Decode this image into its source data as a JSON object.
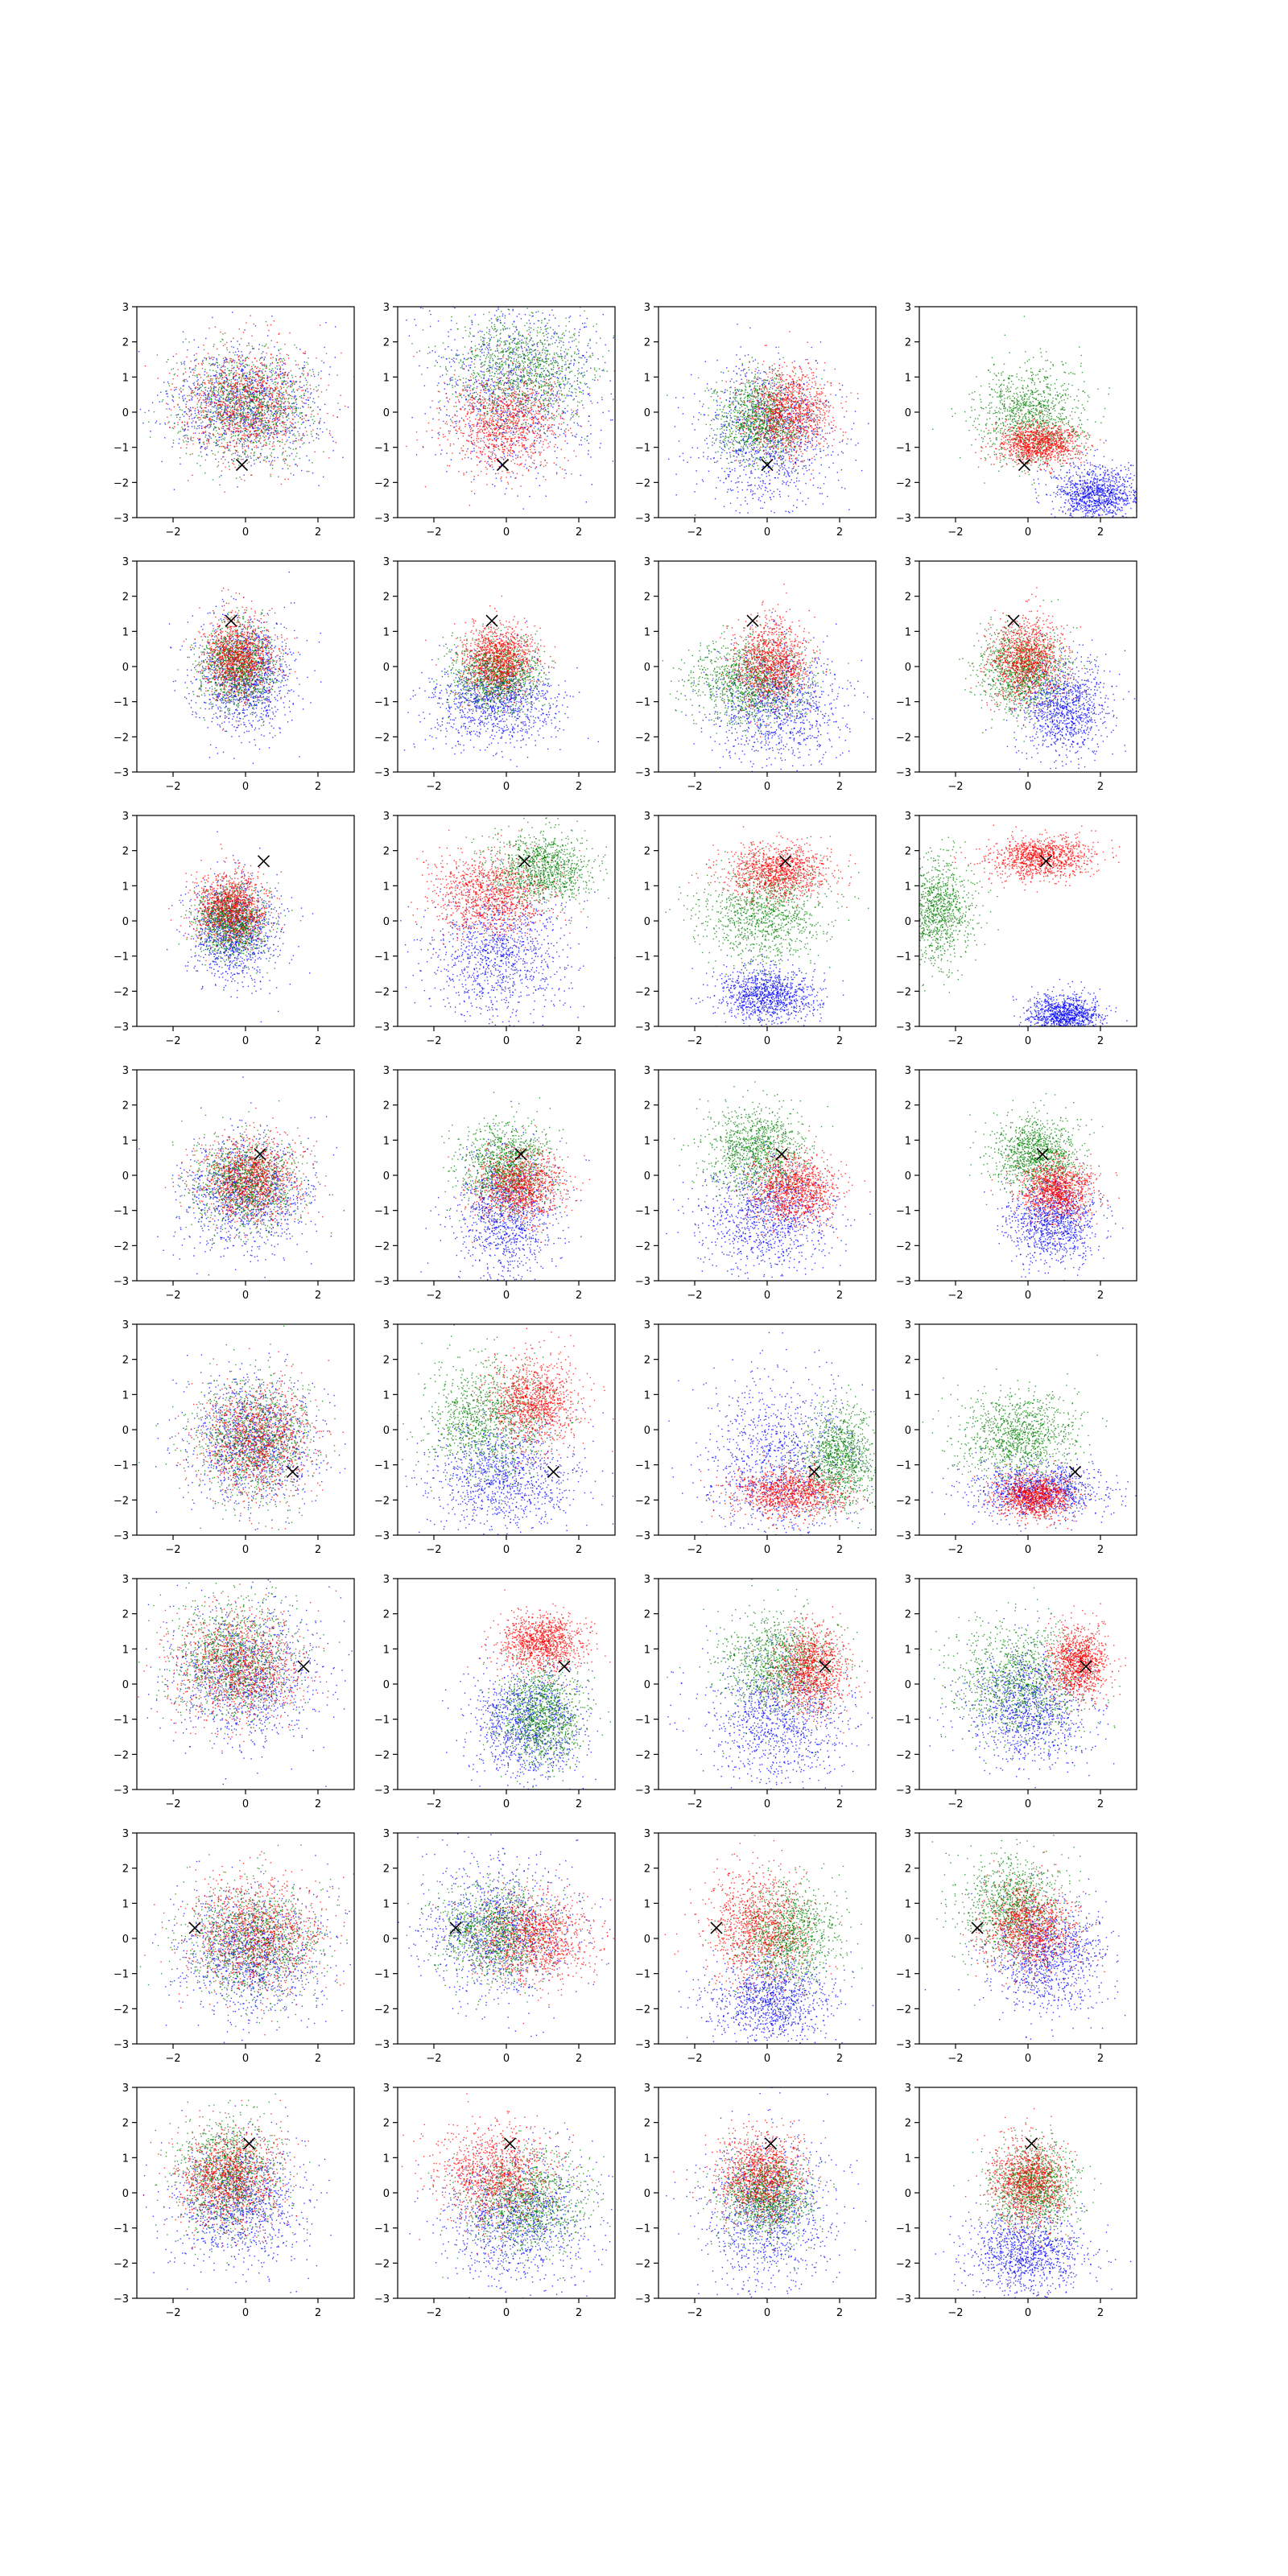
{
  "figure": {
    "background": "#ffffff",
    "rows": 8,
    "cols": 4
  },
  "colors": {
    "blue": "#0000ff",
    "green": "#008000",
    "red": "#ff0000",
    "marker": "#000000",
    "axes": "#000000"
  },
  "chart_data": {
    "type": "scatter",
    "description": "8x4 grid of scatter panels; each panel shows three point clouds (blue, green, red) and a black x marker",
    "xlim": [
      -3,
      3
    ],
    "ylim": [
      -3,
      3
    ],
    "xticks": [
      -2,
      0,
      2
    ],
    "yticks": [
      -3,
      -2,
      -1,
      0,
      1,
      2,
      3
    ],
    "xtick_labels": [
      "−2",
      "0",
      "2"
    ],
    "ytick_labels": [
      "−3",
      "−2",
      "−1",
      "0",
      "1",
      "2",
      "3"
    ],
    "grid": false,
    "legend": "none",
    "points_per_cloud": 1100,
    "panels": [
      {
        "row": 0,
        "col": 0,
        "marker": [
          -0.1,
          -1.5
        ],
        "clouds": [
          {
            "color": "blue",
            "cx": 0,
            "cy": 0.2,
            "sx": 1.0,
            "sy": 0.8
          },
          {
            "color": "green",
            "cx": 0,
            "cy": 0.2,
            "sx": 0.9,
            "sy": 0.8
          },
          {
            "color": "red",
            "cx": 0,
            "cy": 0.2,
            "sx": 0.9,
            "sy": 0.8
          }
        ]
      },
      {
        "row": 0,
        "col": 1,
        "marker": [
          -0.1,
          -1.5
        ],
        "clouds": [
          {
            "color": "blue",
            "cx": 0.3,
            "cy": 0.8,
            "sx": 1.2,
            "sy": 1.3
          },
          {
            "color": "green",
            "cx": 0.4,
            "cy": 1.2,
            "sx": 1.0,
            "sy": 0.8
          },
          {
            "color": "red",
            "cx": -0.1,
            "cy": -0.3,
            "sx": 0.8,
            "sy": 0.7
          }
        ]
      },
      {
        "row": 0,
        "col": 2,
        "marker": [
          0,
          -1.5
        ],
        "clouds": [
          {
            "color": "blue",
            "cx": 0,
            "cy": -0.7,
            "sx": 0.9,
            "sy": 1.0
          },
          {
            "color": "green",
            "cx": -0.2,
            "cy": -0.2,
            "sx": 0.6,
            "sy": 0.6
          },
          {
            "color": "red",
            "cx": 0.6,
            "cy": 0,
            "sx": 0.6,
            "sy": 0.6
          }
        ]
      },
      {
        "row": 0,
        "col": 3,
        "marker": [
          -0.1,
          -1.5
        ],
        "clouds": [
          {
            "color": "blue",
            "cx": 1.9,
            "cy": -2.3,
            "sx": 0.6,
            "sy": 0.4
          },
          {
            "color": "green",
            "cx": 0.1,
            "cy": -0.1,
            "sx": 0.7,
            "sy": 0.7
          },
          {
            "color": "red",
            "cx": 0.3,
            "cy": -0.9,
            "sx": 0.6,
            "sy": 0.3
          }
        ]
      },
      {
        "row": 1,
        "col": 0,
        "marker": [
          -0.4,
          1.3
        ],
        "clouds": [
          {
            "color": "blue",
            "cx": 0,
            "cy": -0.3,
            "sx": 0.7,
            "sy": 0.8
          },
          {
            "color": "green",
            "cx": -0.2,
            "cy": 0,
            "sx": 0.5,
            "sy": 0.6
          },
          {
            "color": "red",
            "cx": -0.2,
            "cy": 0.3,
            "sx": 0.5,
            "sy": 0.6
          }
        ]
      },
      {
        "row": 1,
        "col": 1,
        "marker": [
          -0.4,
          1.3
        ],
        "clouds": [
          {
            "color": "blue",
            "cx": -0.3,
            "cy": -1.0,
            "sx": 0.9,
            "sy": 0.6
          },
          {
            "color": "green",
            "cx": -0.3,
            "cy": -0.2,
            "sx": 0.6,
            "sy": 0.5
          },
          {
            "color": "red",
            "cx": -0.2,
            "cy": 0.2,
            "sx": 0.5,
            "sy": 0.5
          }
        ]
      },
      {
        "row": 1,
        "col": 2,
        "marker": [
          -0.4,
          1.3
        ],
        "clouds": [
          {
            "color": "blue",
            "cx": 0.3,
            "cy": -1.1,
            "sx": 0.9,
            "sy": 0.8
          },
          {
            "color": "green",
            "cx": -0.5,
            "cy": -0.4,
            "sx": 0.8,
            "sy": 0.6
          },
          {
            "color": "red",
            "cx": 0.1,
            "cy": 0.1,
            "sx": 0.5,
            "sy": 0.6
          }
        ]
      },
      {
        "row": 1,
        "col": 3,
        "marker": [
          -0.4,
          1.3
        ],
        "clouds": [
          {
            "color": "blue",
            "cx": 1.0,
            "cy": -1.2,
            "sx": 0.6,
            "sy": 0.7
          },
          {
            "color": "green",
            "cx": -0.2,
            "cy": -0.1,
            "sx": 0.6,
            "sy": 0.6
          },
          {
            "color": "red",
            "cx": 0,
            "cy": 0.2,
            "sx": 0.5,
            "sy": 0.6
          }
        ]
      },
      {
        "row": 2,
        "col": 0,
        "marker": [
          0.5,
          1.7
        ],
        "clouds": [
          {
            "color": "blue",
            "cx": -0.3,
            "cy": -0.3,
            "sx": 0.6,
            "sy": 0.7
          },
          {
            "color": "green",
            "cx": -0.4,
            "cy": 0,
            "sx": 0.5,
            "sy": 0.5
          },
          {
            "color": "red",
            "cx": -0.4,
            "cy": 0.4,
            "sx": 0.5,
            "sy": 0.5
          }
        ]
      },
      {
        "row": 2,
        "col": 1,
        "marker": [
          0.5,
          1.7
        ],
        "clouds": [
          {
            "color": "blue",
            "cx": -0.2,
            "cy": -1.0,
            "sx": 0.9,
            "sy": 0.9
          },
          {
            "color": "green",
            "cx": 1.0,
            "cy": 1.5,
            "sx": 0.7,
            "sy": 0.5
          },
          {
            "color": "red",
            "cx": -0.4,
            "cy": 0.7,
            "sx": 0.8,
            "sy": 0.6
          }
        ]
      },
      {
        "row": 2,
        "col": 2,
        "marker": [
          0.5,
          1.7
        ],
        "clouds": [
          {
            "color": "blue",
            "cx": 0,
            "cy": -2.1,
            "sx": 0.7,
            "sy": 0.4
          },
          {
            "color": "green",
            "cx": -0.1,
            "cy": 0.2,
            "sx": 0.9,
            "sy": 0.7
          },
          {
            "color": "red",
            "cx": 0.3,
            "cy": 1.4,
            "sx": 0.7,
            "sy": 0.4
          }
        ]
      },
      {
        "row": 2,
        "col": 3,
        "marker": [
          0.5,
          1.7
        ],
        "clouds": [
          {
            "color": "blue",
            "cx": 1.0,
            "cy": -2.7,
            "sx": 0.5,
            "sy": 0.3
          },
          {
            "color": "green",
            "cx": -2.5,
            "cy": 0.3,
            "sx": 0.5,
            "sy": 0.8
          },
          {
            "color": "red",
            "cx": 0.4,
            "cy": 1.8,
            "sx": 0.7,
            "sy": 0.3
          }
        ]
      },
      {
        "row": 3,
        "col": 0,
        "marker": [
          0.4,
          0.6
        ],
        "clouds": [
          {
            "color": "blue",
            "cx": 0,
            "cy": -0.5,
            "sx": 0.9,
            "sy": 0.8
          },
          {
            "color": "green",
            "cx": 0,
            "cy": -0.2,
            "sx": 0.7,
            "sy": 0.6
          },
          {
            "color": "red",
            "cx": 0.1,
            "cy": -0.1,
            "sx": 0.7,
            "sy": 0.6
          }
        ]
      },
      {
        "row": 3,
        "col": 1,
        "marker": [
          0.4,
          0.6
        ],
        "clouds": [
          {
            "color": "blue",
            "cx": 0,
            "cy": -1.1,
            "sx": 0.7,
            "sy": 0.9
          },
          {
            "color": "green",
            "cx": 0,
            "cy": 0.3,
            "sx": 0.6,
            "sy": 0.6
          },
          {
            "color": "red",
            "cx": 0.4,
            "cy": -0.3,
            "sx": 0.6,
            "sy": 0.5
          }
        ]
      },
      {
        "row": 3,
        "col": 2,
        "marker": [
          0.4,
          0.6
        ],
        "clouds": [
          {
            "color": "blue",
            "cx": 0,
            "cy": -1.2,
            "sx": 0.9,
            "sy": 0.8
          },
          {
            "color": "green",
            "cx": -0.3,
            "cy": 0.7,
            "sx": 0.7,
            "sy": 0.6
          },
          {
            "color": "red",
            "cx": 0.8,
            "cy": -0.4,
            "sx": 0.6,
            "sy": 0.5
          }
        ]
      },
      {
        "row": 3,
        "col": 3,
        "marker": [
          0.4,
          0.6
        ],
        "clouds": [
          {
            "color": "blue",
            "cx": 0.7,
            "cy": -1.3,
            "sx": 0.6,
            "sy": 0.6
          },
          {
            "color": "green",
            "cx": 0.2,
            "cy": 0.6,
            "sx": 0.6,
            "sy": 0.5
          },
          {
            "color": "red",
            "cx": 0.8,
            "cy": -0.4,
            "sx": 0.5,
            "sy": 0.4
          }
        ]
      },
      {
        "row": 4,
        "col": 0,
        "marker": [
          1.3,
          -1.2
        ],
        "clouds": [
          {
            "color": "blue",
            "cx": 0.2,
            "cy": -0.4,
            "sx": 0.9,
            "sy": 0.9
          },
          {
            "color": "green",
            "cx": 0.2,
            "cy": -0.3,
            "sx": 0.8,
            "sy": 0.8
          },
          {
            "color": "red",
            "cx": 0.3,
            "cy": -0.3,
            "sx": 0.8,
            "sy": 0.8
          }
        ]
      },
      {
        "row": 4,
        "col": 1,
        "marker": [
          1.3,
          -1.2
        ],
        "clouds": [
          {
            "color": "blue",
            "cx": -0.1,
            "cy": -1.4,
            "sx": 1.0,
            "sy": 0.8
          },
          {
            "color": "green",
            "cx": -0.5,
            "cy": 0.3,
            "sx": 0.8,
            "sy": 0.8
          },
          {
            "color": "red",
            "cx": 0.8,
            "cy": 0.8,
            "sx": 0.6,
            "sy": 0.6
          }
        ]
      },
      {
        "row": 4,
        "col": 2,
        "marker": [
          1.3,
          -1.2
        ],
        "clouds": [
          {
            "color": "blue",
            "cx": 0.3,
            "cy": -0.9,
            "sx": 1.0,
            "sy": 1.2
          },
          {
            "color": "green",
            "cx": 2.0,
            "cy": -0.8,
            "sx": 0.5,
            "sy": 0.7
          },
          {
            "color": "red",
            "cx": 0.6,
            "cy": -1.8,
            "sx": 0.8,
            "sy": 0.35
          }
        ]
      },
      {
        "row": 4,
        "col": 3,
        "marker": [
          1.3,
          -1.2
        ],
        "clouds": [
          {
            "color": "blue",
            "cx": 0.3,
            "cy": -1.7,
            "sx": 0.9,
            "sy": 0.4
          },
          {
            "color": "green",
            "cx": -0.2,
            "cy": -0.2,
            "sx": 0.8,
            "sy": 0.6
          },
          {
            "color": "red",
            "cx": 0.2,
            "cy": -1.9,
            "sx": 0.5,
            "sy": 0.3
          }
        ]
      },
      {
        "row": 5,
        "col": 0,
        "marker": [
          1.6,
          0.5
        ],
        "clouds": [
          {
            "color": "blue",
            "cx": 0,
            "cy": 0.2,
            "sx": 1.0,
            "sy": 1.0
          },
          {
            "color": "green",
            "cx": -0.3,
            "cy": 0.7,
            "sx": 0.8,
            "sy": 0.8
          },
          {
            "color": "red",
            "cx": -0.2,
            "cy": 0.5,
            "sx": 0.9,
            "sy": 0.8
          }
        ]
      },
      {
        "row": 5,
        "col": 1,
        "marker": [
          1.6,
          0.5
        ],
        "clouds": [
          {
            "color": "blue",
            "cx": 0.6,
            "cy": -1.1,
            "sx": 0.8,
            "sy": 0.8
          },
          {
            "color": "green",
            "cx": 1.0,
            "cy": -0.9,
            "sx": 0.6,
            "sy": 0.7
          },
          {
            "color": "red",
            "cx": 1.0,
            "cy": 1.2,
            "sx": 0.6,
            "sy": 0.4
          }
        ]
      },
      {
        "row": 5,
        "col": 2,
        "marker": [
          1.6,
          0.5
        ],
        "clouds": [
          {
            "color": "blue",
            "cx": 0.3,
            "cy": -1.0,
            "sx": 1.0,
            "sy": 1.0
          },
          {
            "color": "green",
            "cx": 0.3,
            "cy": 0.6,
            "sx": 0.8,
            "sy": 0.7
          },
          {
            "color": "red",
            "cx": 1.2,
            "cy": 0.4,
            "sx": 0.5,
            "sy": 0.6
          }
        ]
      },
      {
        "row": 5,
        "col": 3,
        "marker": [
          1.6,
          0.5
        ],
        "clouds": [
          {
            "color": "blue",
            "cx": 0,
            "cy": -0.7,
            "sx": 0.8,
            "sy": 0.8
          },
          {
            "color": "green",
            "cx": -0.2,
            "cy": 0.1,
            "sx": 0.9,
            "sy": 0.8
          },
          {
            "color": "red",
            "cx": 1.4,
            "cy": 0.6,
            "sx": 0.4,
            "sy": 0.5
          }
        ]
      },
      {
        "row": 6,
        "col": 0,
        "marker": [
          -1.4,
          0.3
        ],
        "clouds": [
          {
            "color": "blue",
            "cx": 0.2,
            "cy": -0.4,
            "sx": 1.0,
            "sy": 0.9
          },
          {
            "color": "green",
            "cx": 0.2,
            "cy": -0.1,
            "sx": 0.9,
            "sy": 0.8
          },
          {
            "color": "red",
            "cx": 0.3,
            "cy": 0.1,
            "sx": 0.9,
            "sy": 0.8
          }
        ]
      },
      {
        "row": 6,
        "col": 1,
        "marker": [
          -1.4,
          0.3
        ],
        "clouds": [
          {
            "color": "blue",
            "cx": -0.2,
            "cy": 0.3,
            "sx": 1.0,
            "sy": 1.0
          },
          {
            "color": "green",
            "cx": -0.3,
            "cy": 0.2,
            "sx": 0.8,
            "sy": 0.7
          },
          {
            "color": "red",
            "cx": 0.8,
            "cy": 0,
            "sx": 0.8,
            "sy": 0.6
          }
        ]
      },
      {
        "row": 6,
        "col": 2,
        "marker": [
          -1.4,
          0.3
        ],
        "clouds": [
          {
            "color": "blue",
            "cx": 0.1,
            "cy": -1.8,
            "sx": 0.8,
            "sy": 0.6
          },
          {
            "color": "green",
            "cx": 0.6,
            "cy": 0.1,
            "sx": 0.7,
            "sy": 0.7
          },
          {
            "color": "red",
            "cx": -0.3,
            "cy": 0.3,
            "sx": 0.7,
            "sy": 0.8
          }
        ]
      },
      {
        "row": 6,
        "col": 3,
        "marker": [
          -1.4,
          0.3
        ],
        "clouds": [
          {
            "color": "blue",
            "cx": 0.6,
            "cy": -0.5,
            "sx": 0.8,
            "sy": 0.8
          },
          {
            "color": "green",
            "cx": -0.4,
            "cy": 0.9,
            "sx": 0.7,
            "sy": 0.7
          },
          {
            "color": "red",
            "cx": 0,
            "cy": 0.3,
            "sx": 0.6,
            "sy": 0.6
          }
        ]
      },
      {
        "row": 7,
        "col": 0,
        "marker": [
          0.1,
          1.4
        ],
        "clouds": [
          {
            "color": "blue",
            "cx": -0.2,
            "cy": -0.3,
            "sx": 0.9,
            "sy": 0.9
          },
          {
            "color": "green",
            "cx": -0.5,
            "cy": 0.5,
            "sx": 0.7,
            "sy": 0.8
          },
          {
            "color": "red",
            "cx": -0.4,
            "cy": 0.4,
            "sx": 0.7,
            "sy": 0.7
          }
        ]
      },
      {
        "row": 7,
        "col": 1,
        "marker": [
          0.1,
          1.4
        ],
        "clouds": [
          {
            "color": "blue",
            "cx": 0.3,
            "cy": -0.8,
            "sx": 1.0,
            "sy": 0.9
          },
          {
            "color": "green",
            "cx": 0.6,
            "cy": -0.3,
            "sx": 0.8,
            "sy": 0.7
          },
          {
            "color": "red",
            "cx": -0.3,
            "cy": 0.5,
            "sx": 0.8,
            "sy": 0.7
          }
        ]
      },
      {
        "row": 7,
        "col": 2,
        "marker": [
          0.1,
          1.4
        ],
        "clouds": [
          {
            "color": "blue",
            "cx": 0,
            "cy": -0.6,
            "sx": 0.9,
            "sy": 1.1
          },
          {
            "color": "green",
            "cx": 0,
            "cy": -0.1,
            "sx": 0.6,
            "sy": 0.6
          },
          {
            "color": "red",
            "cx": -0.2,
            "cy": 0.5,
            "sx": 0.6,
            "sy": 0.6
          }
        ]
      },
      {
        "row": 7,
        "col": 3,
        "marker": [
          0.1,
          1.4
        ],
        "clouds": [
          {
            "color": "blue",
            "cx": 0,
            "cy": -1.7,
            "sx": 0.8,
            "sy": 0.6
          },
          {
            "color": "green",
            "cx": 0.2,
            "cy": 0.2,
            "sx": 0.6,
            "sy": 0.6
          },
          {
            "color": "red",
            "cx": 0,
            "cy": 0.3,
            "sx": 0.5,
            "sy": 0.6
          }
        ]
      }
    ]
  }
}
